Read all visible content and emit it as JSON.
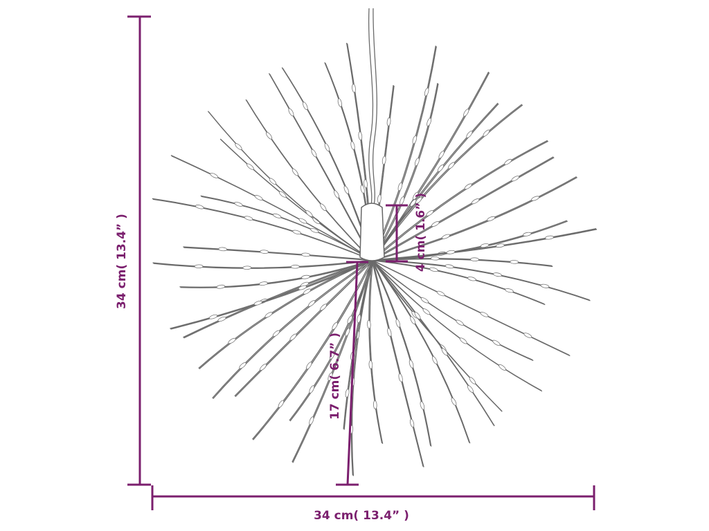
{
  "dimensions": {
    "height": "34 cm( 13.4” )",
    "width": "34 cm( 13.4” )",
    "cap": "4 cm( 1.6” )",
    "strand": "17 cm( 6.7” )"
  }
}
